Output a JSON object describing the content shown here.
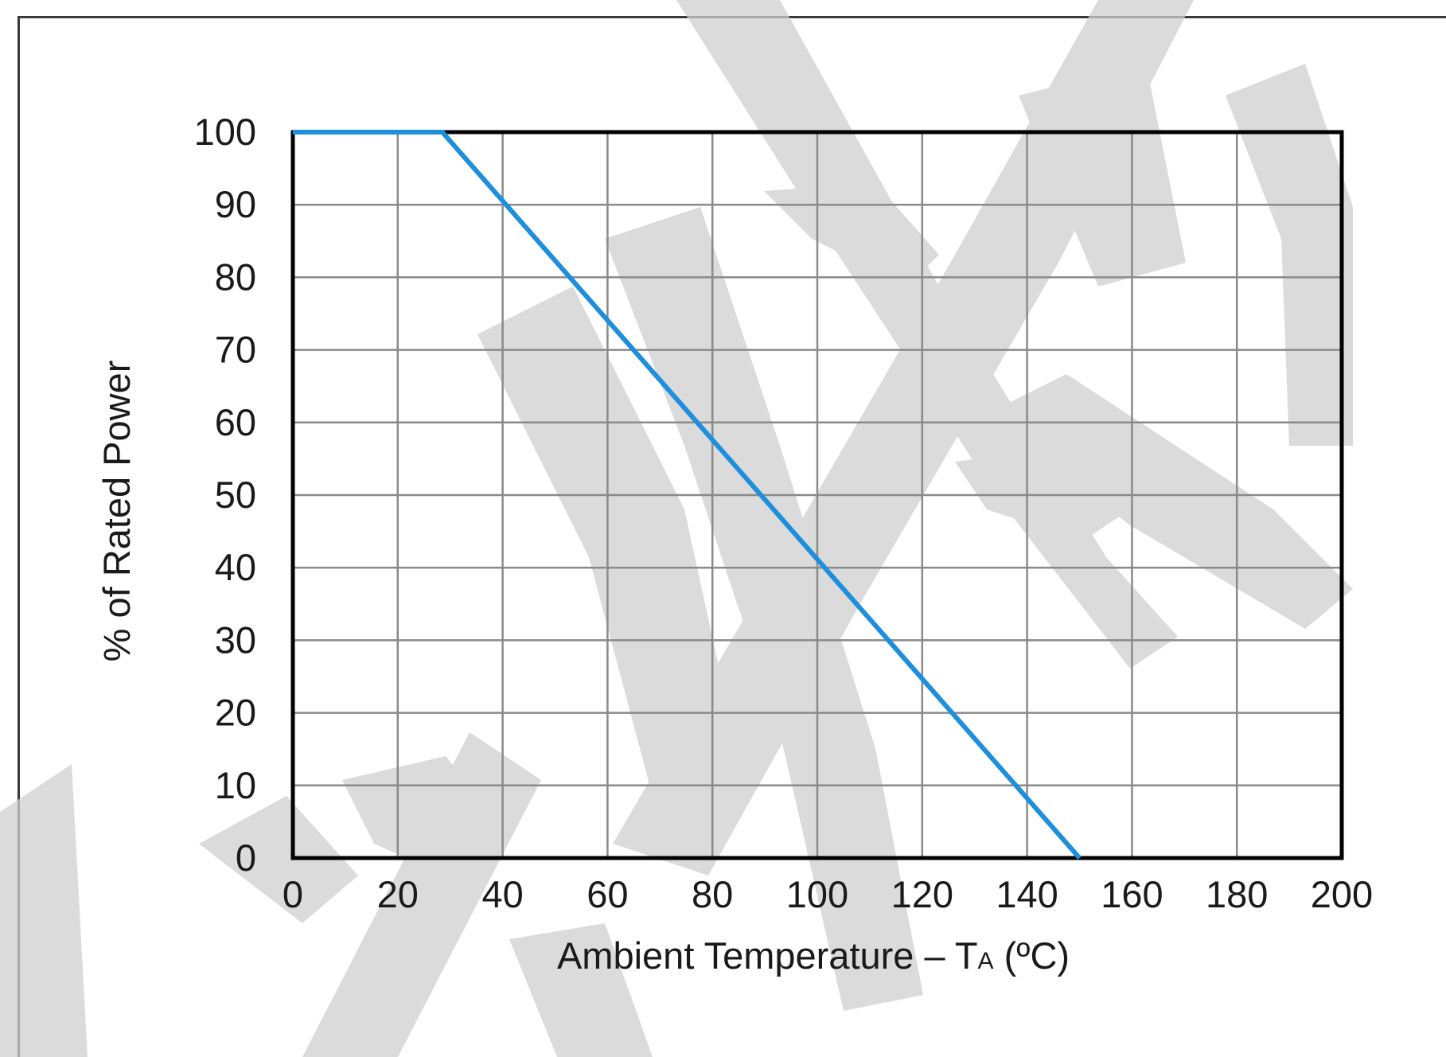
{
  "chart_data": {
    "type": "line",
    "title": "",
    "xlabel": "Ambient Temperature – T",
    "xlabel_subscript": "A",
    "xlabel_unit": " (ºC)",
    "ylabel": "% of Rated Power",
    "xlim": [
      0,
      200
    ],
    "ylim": [
      0,
      100
    ],
    "x_ticks": [
      "0",
      "20",
      "40",
      "60",
      "80",
      "100",
      "120",
      "140",
      "160",
      "180",
      "200"
    ],
    "y_ticks": [
      "0",
      "10",
      "20",
      "30",
      "40",
      "50",
      "60",
      "70",
      "80",
      "90",
      "100"
    ],
    "grid": true,
    "series": [
      {
        "color": "#1e8fdc",
        "x": [
          0,
          28.5,
          150
        ],
        "y": [
          100,
          100,
          0
        ]
      }
    ]
  }
}
